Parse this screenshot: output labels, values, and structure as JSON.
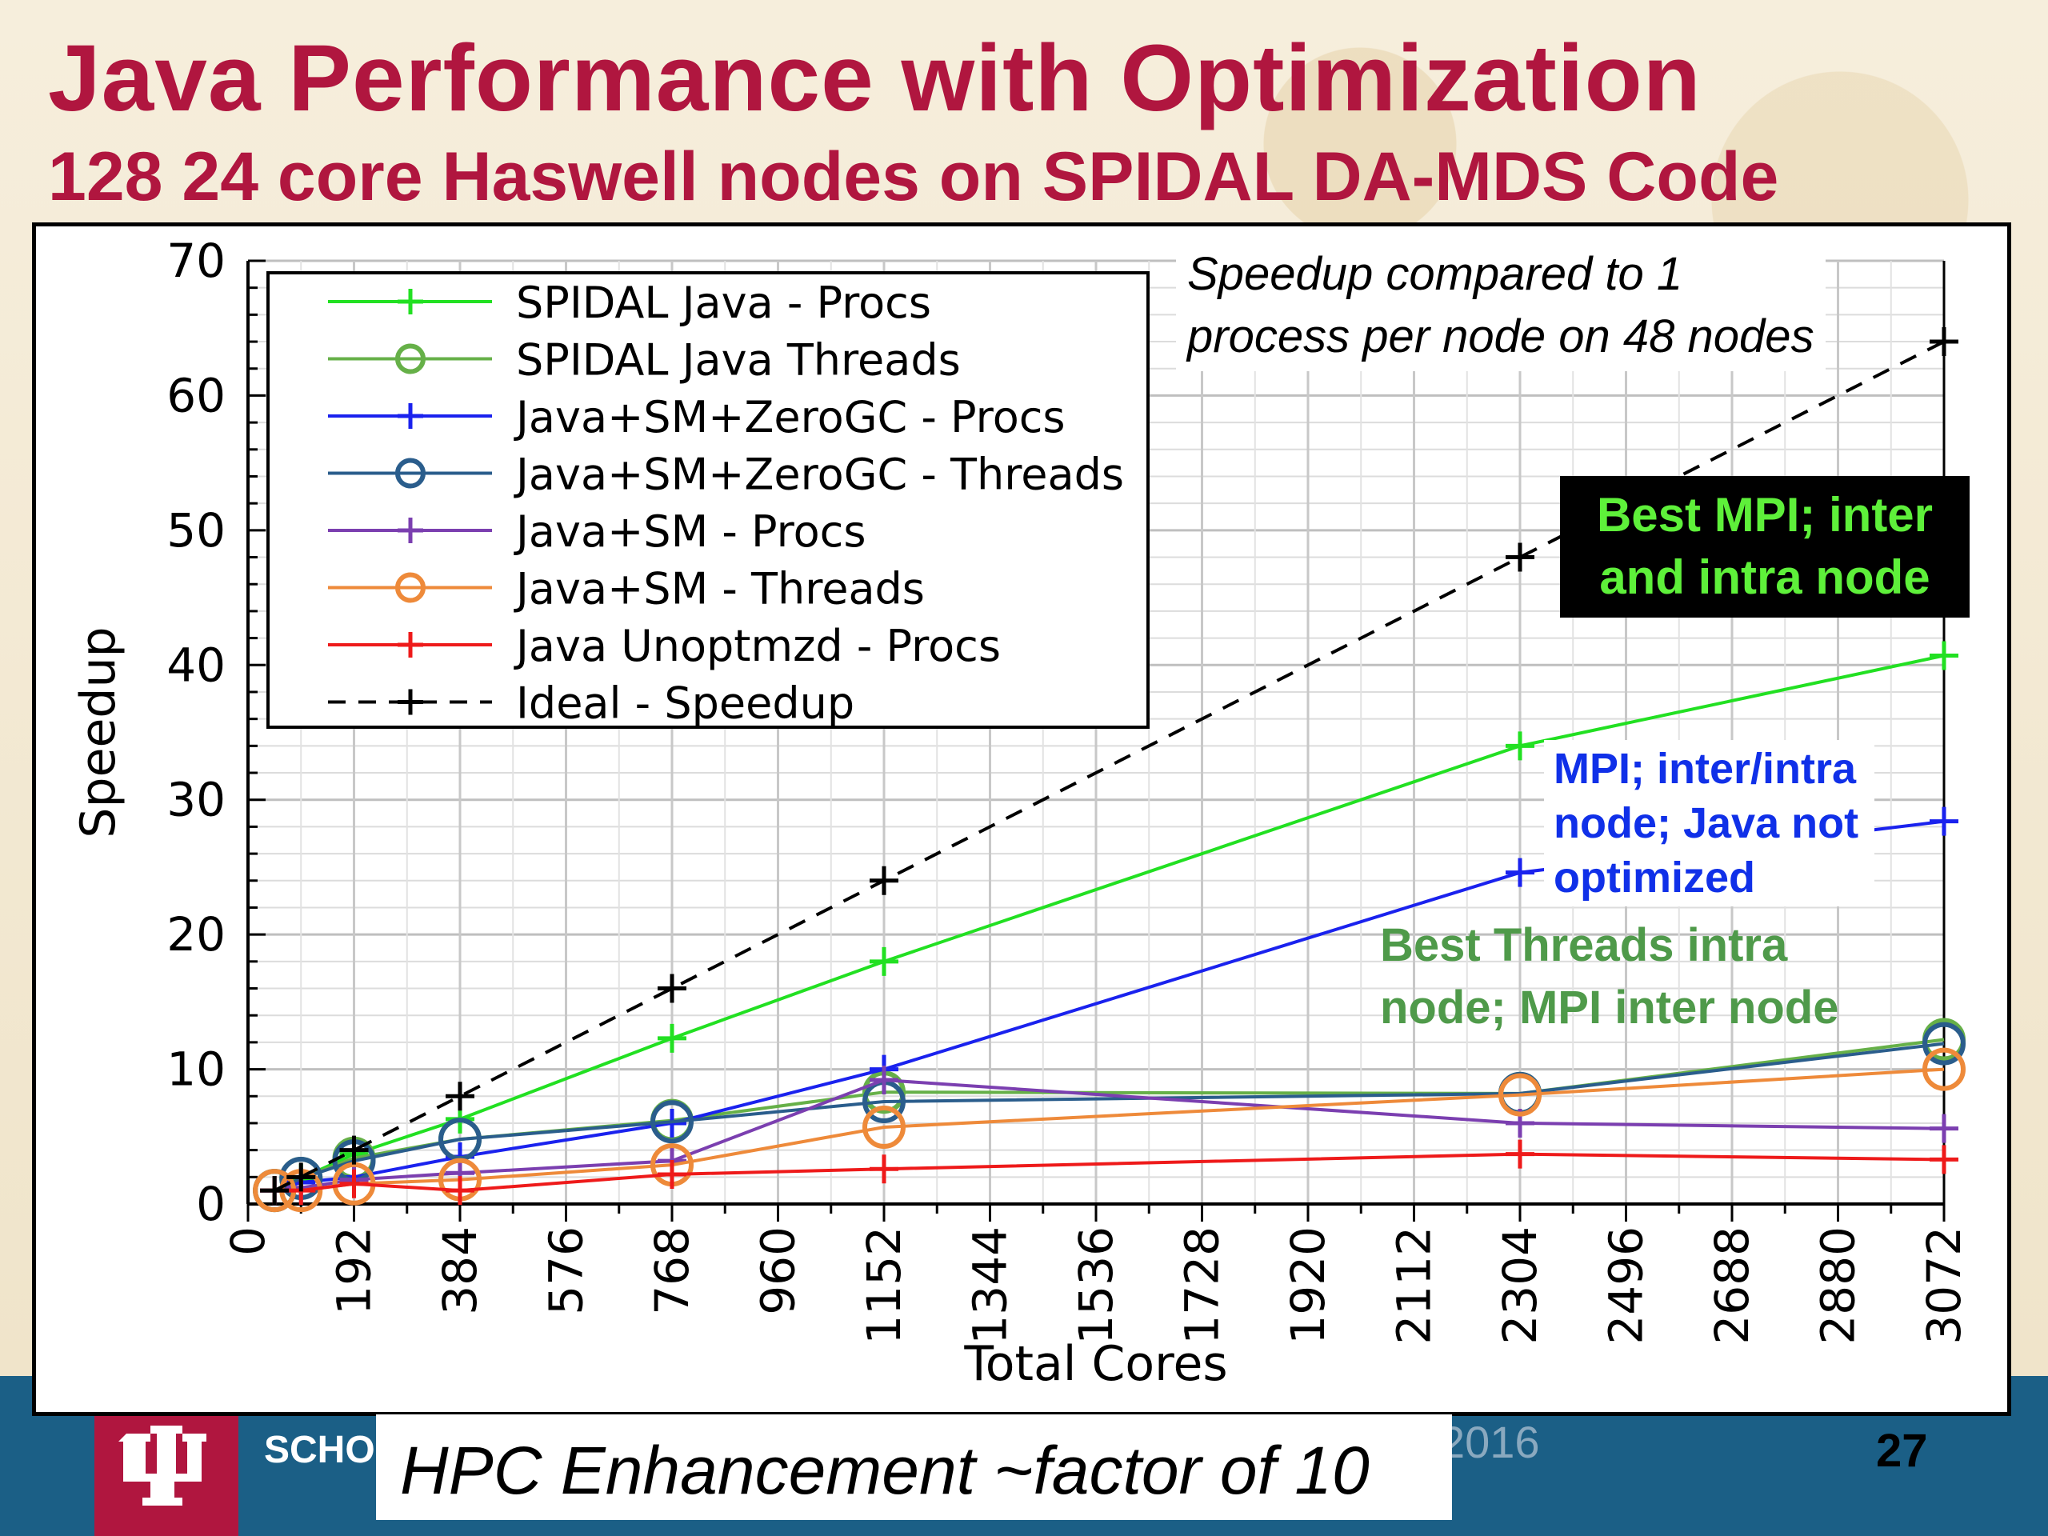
{
  "slide": {
    "title": "Java Performance with Optimization",
    "subtitle": "128 24 core Haswell nodes on SPIDAL DA-MDS Code",
    "caption": "HPC Enhancement ~factor of 10",
    "page_number": "27",
    "footer_school": "SCHO",
    "footer_year": "2016"
  },
  "annotations": {
    "speedup_note_line1": "Speedup compared to 1",
    "speedup_note_line2": "process per node on 48 nodes",
    "best_mpi_line1": "Best MPI; inter",
    "best_mpi_line2": "and intra node",
    "mpi_java_line1": "MPI; inter/intra",
    "mpi_java_line2": "node; Java not",
    "mpi_java_line3": "optimized",
    "best_threads_line1": "Best Threads intra",
    "best_threads_line2": "node; MPI inter node"
  },
  "colors": {
    "accent": "#b0163f",
    "footer": "#1b5f86",
    "best_mpi_text": "#5ef03a",
    "mpi_java_text": "#1030e8",
    "best_threads_text": "#4f9a4a"
  },
  "chart_data": {
    "type": "line",
    "xlabel": "Total Cores",
    "ylabel": "Speedup",
    "xlim": [
      0,
      3072
    ],
    "ylim": [
      0,
      70
    ],
    "xticks": [
      0,
      192,
      384,
      576,
      768,
      960,
      1152,
      1344,
      1536,
      1728,
      1920,
      2112,
      2304,
      2496,
      2688,
      2880,
      3072
    ],
    "yticks": [
      0,
      10,
      20,
      30,
      40,
      50,
      60,
      70
    ],
    "grid": true,
    "legend_position": "top-left",
    "series": [
      {
        "name": "SPIDAL Java - Procs",
        "color": "#22e022",
        "marker": "plus",
        "dash": false,
        "x": [
          48,
          96,
          192,
          384,
          768,
          1152,
          2304,
          3072
        ],
        "y": [
          1,
          1.9,
          3.7,
          6.3,
          12.3,
          18,
          34,
          40.7
        ]
      },
      {
        "name": "SPIDAL Java Threads",
        "color": "#66b048",
        "marker": "circle",
        "dash": false,
        "x": [
          48,
          96,
          192,
          384,
          768,
          1152,
          2304,
          3072
        ],
        "y": [
          1,
          1.9,
          3.4,
          4.8,
          6.2,
          8.3,
          8.2,
          12.2
        ]
      },
      {
        "name": "Java+SM+ZeroGC - Procs",
        "color": "#1a22ee",
        "marker": "plus",
        "dash": false,
        "x": [
          48,
          96,
          192,
          384,
          768,
          1152,
          2304,
          3072
        ],
        "y": [
          1,
          1.6,
          2.0,
          3.5,
          6.0,
          10.0,
          24.6,
          28.4
        ]
      },
      {
        "name": "Java+SM+ZeroGC - Threads",
        "color": "#2a5d8c",
        "marker": "circle",
        "dash": false,
        "x": [
          48,
          96,
          192,
          384,
          768,
          1152,
          2304,
          3072
        ],
        "y": [
          1,
          1.9,
          3.2,
          4.8,
          6.1,
          7.6,
          8.2,
          11.9
        ]
      },
      {
        "name": "Java+SM - Procs",
        "color": "#7b3fb0",
        "marker": "plus",
        "dash": false,
        "x": [
          48,
          96,
          192,
          384,
          768,
          1152,
          2304,
          3072
        ],
        "y": [
          1,
          1.2,
          1.8,
          2.3,
          3.2,
          9.2,
          6.0,
          5.6
        ]
      },
      {
        "name": "Java+SM - Threads",
        "color": "#ee8a3a",
        "marker": "circle",
        "dash": false,
        "x": [
          48,
          96,
          192,
          384,
          768,
          1152,
          2304,
          3072
        ],
        "y": [
          1,
          1.0,
          1.5,
          1.8,
          2.9,
          5.7,
          8.1,
          10.0
        ]
      },
      {
        "name": "Java Unoptmzd - Procs",
        "color": "#ee1a1a",
        "marker": "plus",
        "dash": false,
        "x": [
          48,
          96,
          192,
          384,
          768,
          1152,
          2304,
          3072
        ],
        "y": [
          1,
          1.0,
          1.5,
          1.0,
          2.2,
          2.6,
          3.7,
          3.3
        ]
      },
      {
        "name": "Ideal - Speedup",
        "color": "#000000",
        "marker": "plus",
        "dash": true,
        "x": [
          48,
          96,
          192,
          384,
          768,
          1152,
          2304,
          3072
        ],
        "y": [
          1,
          2,
          4,
          8,
          16,
          24,
          48,
          64
        ]
      }
    ]
  }
}
